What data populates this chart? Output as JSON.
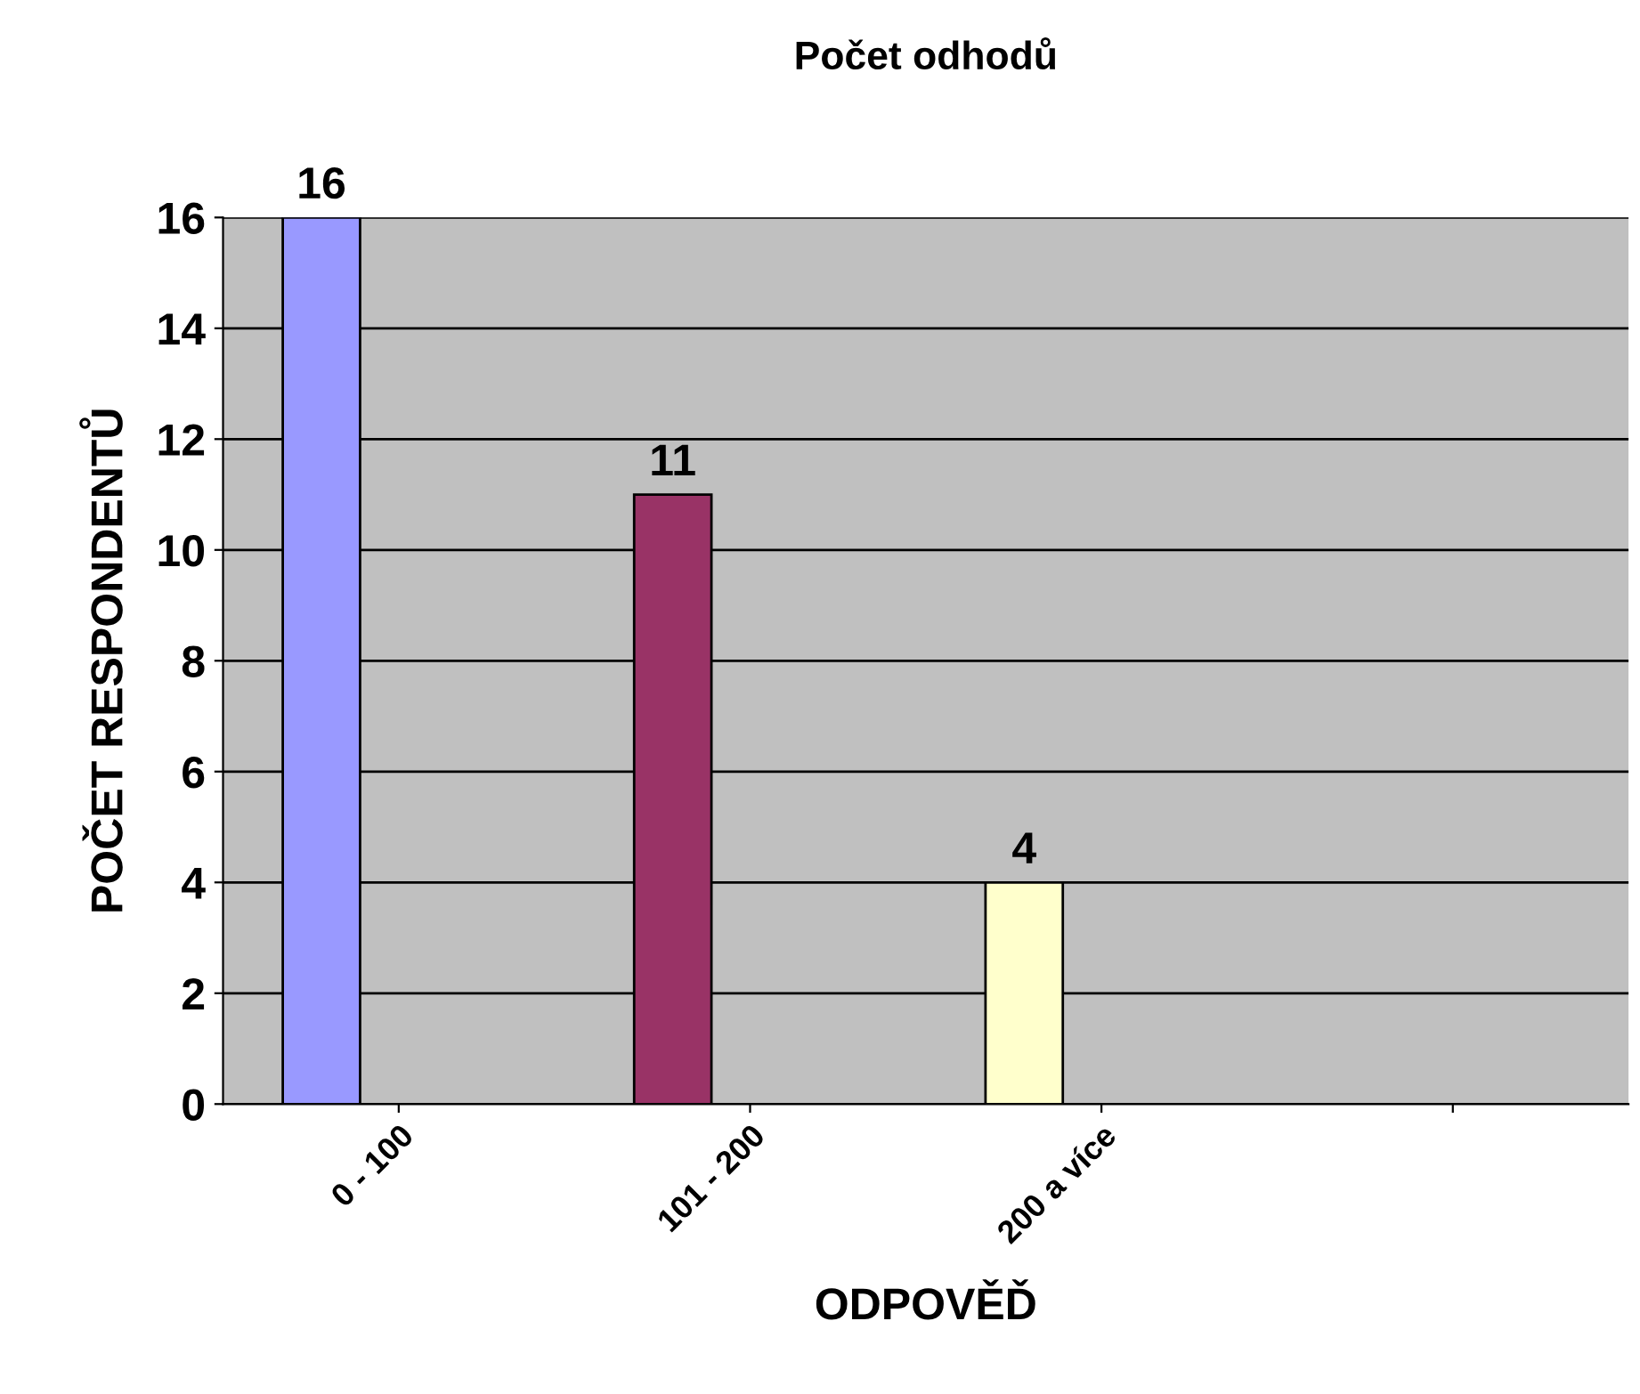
{
  "chart_data": {
    "type": "bar",
    "title": "Počet odhodů",
    "xlabel": "ODPOVĚĎ",
    "ylabel": "POČET RESPONDENTŮ",
    "categories": [
      "0 - 100",
      "101 - 200",
      "200 a více",
      null
    ],
    "values": [
      16,
      11,
      4,
      null
    ],
    "colors": [
      "#9999ff",
      "#993366",
      "#ffffcc",
      "#ffffff"
    ],
    "ylim": [
      0,
      16
    ],
    "yticks": [
      0,
      2,
      4,
      6,
      8,
      10,
      12,
      14,
      16
    ],
    "grid": "y",
    "data_labels": true,
    "legend": false
  }
}
